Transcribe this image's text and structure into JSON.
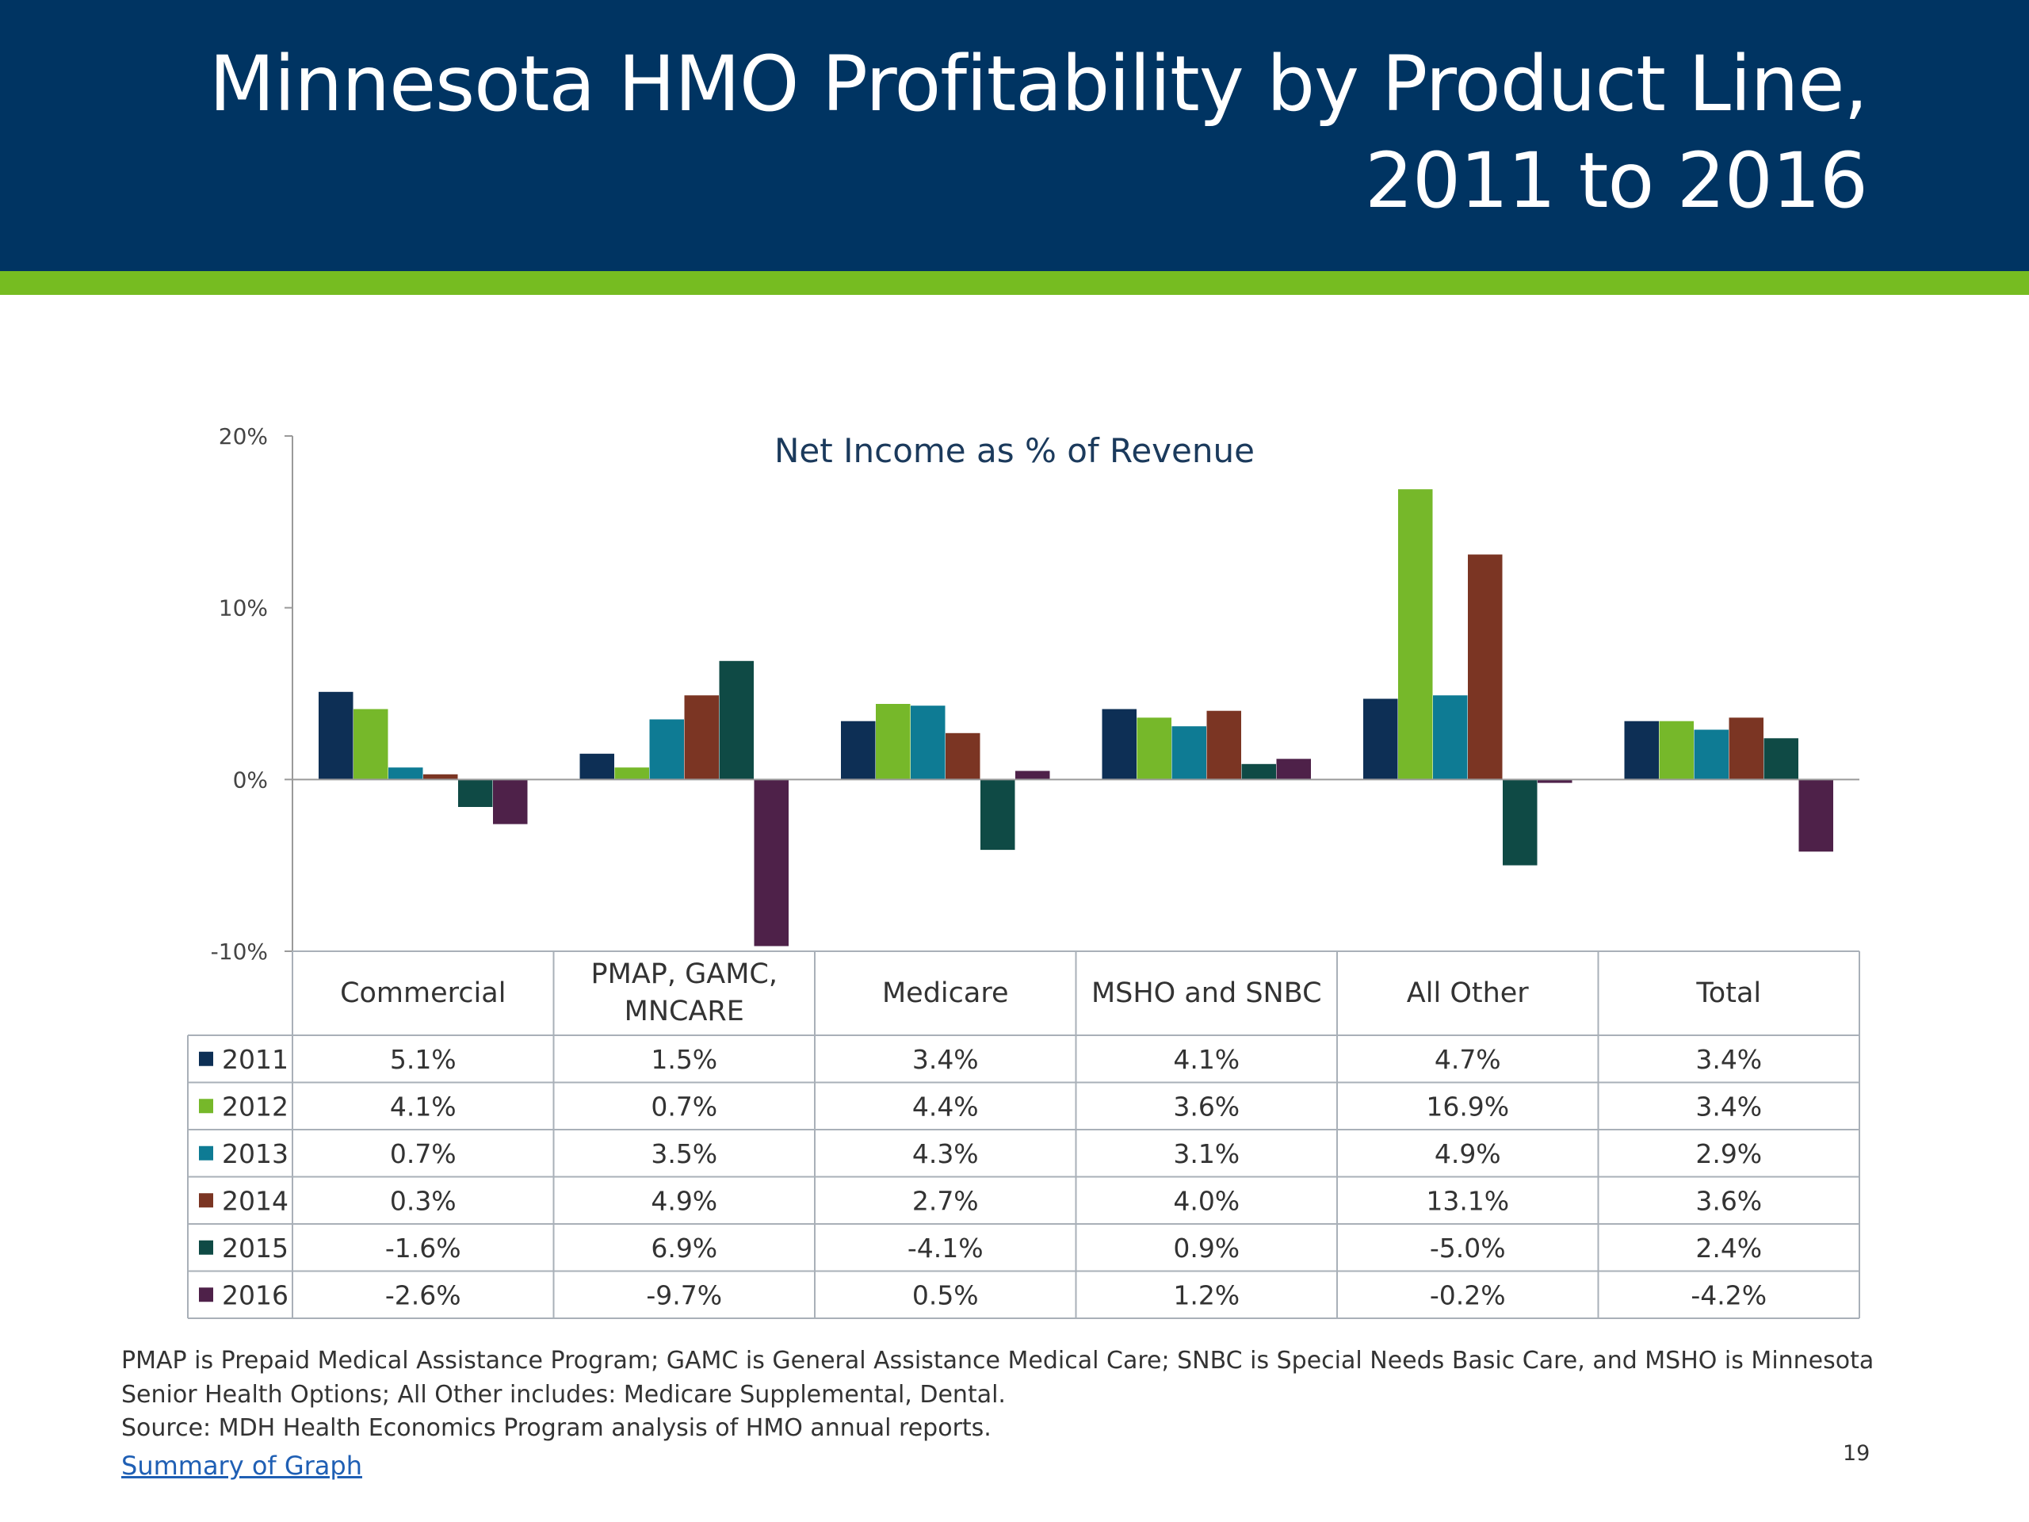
{
  "slide": {
    "title_line1": "Minnesota HMO Profitability by Product Line,",
    "title_line2": "2011 to 2016",
    "notes": [
      "PMAP is Prepaid Medical Assistance Program; GAMC is General Assistance Medical Care; SNBC is Special Needs Basic Care, and MSHO is Minnesota",
      "Senior Health Options; All Other includes: Medicare Supplemental, Dental.",
      "Source: MDH Health Economics Program analysis of HMO annual reports."
    ],
    "link_text": "Summary of Graph",
    "page_number": "19",
    "colors": {
      "header": "#003462",
      "accent_bar": "#76bc21"
    }
  },
  "chart_data": {
    "type": "bar",
    "title": "Net Income as % of Revenue",
    "categories": [
      [
        "Commercial"
      ],
      [
        "PMAP, GAMC,",
        "MNCARE"
      ],
      [
        "Medicare"
      ],
      [
        "MSHO and SNBC"
      ],
      [
        "All Other"
      ],
      [
        "Total"
      ]
    ],
    "ylim": [
      -10,
      20
    ],
    "yticks": [
      20,
      10,
      0,
      -10
    ],
    "ytick_labels": [
      "20%",
      "10%",
      "0%",
      "-10%"
    ],
    "grid": false,
    "legend": "data-table",
    "series": [
      {
        "name": "2011",
        "color": "#0d2f55",
        "values": [
          5.1,
          1.5,
          3.4,
          4.1,
          4.7,
          3.4
        ],
        "labels": [
          "5.1%",
          "1.5%",
          "3.4%",
          "4.1%",
          "4.7%",
          "3.4%"
        ]
      },
      {
        "name": "2012",
        "color": "#76b82a",
        "values": [
          4.1,
          0.7,
          4.4,
          3.6,
          16.9,
          3.4
        ],
        "labels": [
          "4.1%",
          "0.7%",
          "4.4%",
          "3.6%",
          "16.9%",
          "3.4%"
        ]
      },
      {
        "name": "2013",
        "color": "#0e7b94",
        "values": [
          0.7,
          3.5,
          4.3,
          3.1,
          4.9,
          2.9
        ],
        "labels": [
          "0.7%",
          "3.5%",
          "4.3%",
          "3.1%",
          "4.9%",
          "2.9%"
        ]
      },
      {
        "name": "2014",
        "color": "#7b3523",
        "values": [
          0.3,
          4.9,
          2.7,
          4.0,
          13.1,
          3.6
        ],
        "labels": [
          "0.3%",
          "4.9%",
          "2.7%",
          "4.0%",
          "13.1%",
          "3.6%"
        ]
      },
      {
        "name": "2015",
        "color": "#0f4a45",
        "values": [
          -1.6,
          6.9,
          -4.1,
          0.9,
          -5.0,
          2.4
        ],
        "labels": [
          "-1.6%",
          "6.9%",
          "-4.1%",
          "0.9%",
          "-5.0%",
          "2.4%"
        ]
      },
      {
        "name": "2016",
        "color": "#4e2149",
        "values": [
          -2.6,
          -9.7,
          0.5,
          1.2,
          -0.2,
          -4.2
        ],
        "labels": [
          "-2.6%",
          "-9.7%",
          "0.5%",
          "1.2%",
          "-0.2%",
          "-4.2%"
        ]
      }
    ]
  }
}
